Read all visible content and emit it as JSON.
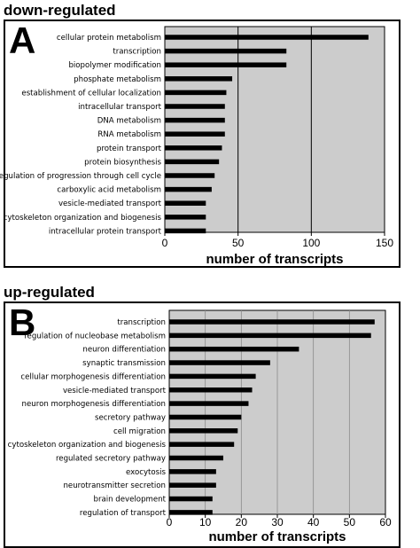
{
  "chart_data": [
    {
      "type": "bar",
      "orientation": "horizontal",
      "section_title": "down-regulated",
      "panel_label": "A",
      "xlabel": "number of transcripts",
      "xlim": [
        0,
        150
      ],
      "xticks": [
        "0",
        "50",
        "100",
        "150"
      ],
      "grid": "vertical lines at 50 and 100",
      "plot_background": "#cccccc",
      "bar_color": "#000000",
      "categories": [
        "cellular protein metabolism",
        "transcription",
        "biopolymer modification",
        "phosphate metabolism",
        "establishment of cellular localization",
        "intracellular transport",
        "DNA metabolism",
        "RNA metabolism",
        "protein transport",
        "protein biosynthesis",
        "regulation of progression through cell cycle",
        "carboxylic acid metabolism",
        "vesicle-mediated transport",
        "cytoskeleton organization and biogenesis",
        "intracellular protein transport"
      ],
      "values": [
        139,
        83,
        83,
        46,
        42,
        41,
        41,
        41,
        39,
        37,
        34,
        32,
        28,
        28,
        28
      ]
    },
    {
      "type": "bar",
      "orientation": "horizontal",
      "section_title": "up-regulated",
      "panel_label": "B",
      "xlabel": "number of transcripts",
      "xlim": [
        0,
        60
      ],
      "xticks": [
        "0",
        "10",
        "20",
        "30",
        "40",
        "50",
        "60"
      ],
      "grid": "vertical lines every 10",
      "plot_background": "#cccccc",
      "bar_color": "#000000",
      "categories": [
        "transcription",
        "regulation of nucleobase metabolism",
        "neuron differentiation",
        "synaptic transmission",
        "cellular morphogenesis differentiation",
        "vesicle-mediated transport",
        "neuron morphogenesis differentiation",
        "secretory pathway",
        "cell migration",
        "cytoskeleton organization and biogenesis",
        "regulated secretory pathway",
        "exocytosis",
        "neurotransmitter secretion",
        "brain development",
        "regulation of transport"
      ],
      "values": [
        57,
        56,
        36,
        28,
        24,
        23,
        22,
        20,
        19,
        18,
        15,
        13,
        13,
        12,
        12
      ]
    }
  ]
}
